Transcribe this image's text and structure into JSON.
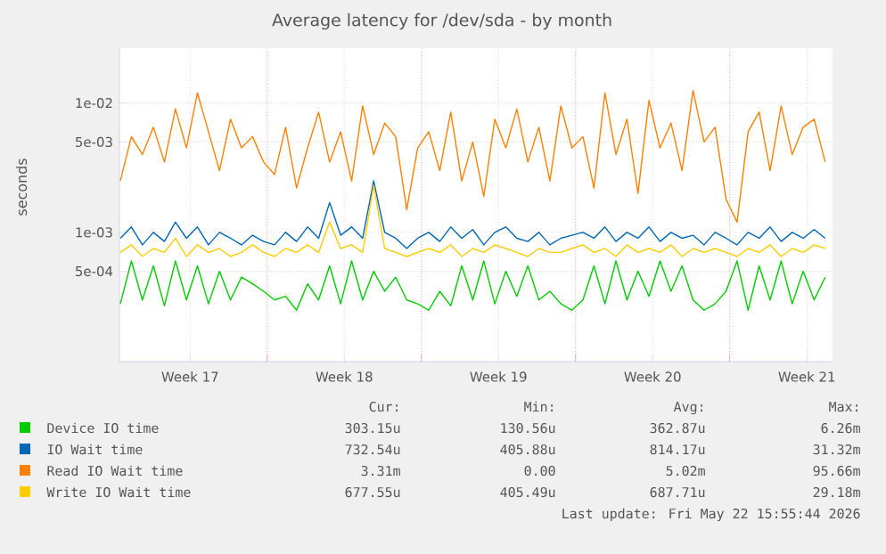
{
  "chart_data": {
    "type": "line",
    "title": "Average latency for /dev/sda - by month",
    "ylabel": "seconds",
    "log": "y",
    "grid": true,
    "legend": "bottom",
    "marker": "none",
    "xlim": [
      "2026-04-20T07:00",
      "2026-05-22T16:00"
    ],
    "xticks": [
      {
        "value": "2026-04-23T12:00",
        "label": "Week 17"
      },
      {
        "value": "2026-04-27T00:00",
        "label": null
      },
      {
        "value": "2026-04-30T12:00",
        "label": "Week 18"
      },
      {
        "value": "2026-05-04T00:00",
        "label": null
      },
      {
        "value": "2026-05-07T12:00",
        "label": "Week 19"
      },
      {
        "value": "2026-05-11T00:00",
        "label": null
      },
      {
        "value": "2026-05-14T12:00",
        "label": "Week 20"
      },
      {
        "value": "2026-05-18T00:00",
        "label": null
      },
      {
        "value": "2026-05-21T12:00",
        "label": "Week 21"
      }
    ],
    "ylim": [
      0.0001,
      0.0266
    ],
    "yticks": [
      {
        "value": 0.0005,
        "label": "5e-04"
      },
      {
        "value": 0.001,
        "label": "1e-03"
      },
      {
        "value": 0.005,
        "label": "5e-03"
      },
      {
        "value": 0.01,
        "label": "1e-02"
      }
    ],
    "x": [
      "2026-04-20T08:00",
      "2026-04-20T20:00",
      "2026-04-21T08:00",
      "2026-04-21T20:00",
      "2026-04-22T08:00",
      "2026-04-22T20:00",
      "2026-04-23T08:00",
      "2026-04-23T20:00",
      "2026-04-24T08:00",
      "2026-04-24T20:00",
      "2026-04-25T08:00",
      "2026-04-25T20:00",
      "2026-04-26T08:00",
      "2026-04-26T20:00",
      "2026-04-27T08:00",
      "2026-04-27T20:00",
      "2026-04-28T08:00",
      "2026-04-28T20:00",
      "2026-04-29T08:00",
      "2026-04-29T20:00",
      "2026-04-30T08:00",
      "2026-04-30T20:00",
      "2026-05-01T08:00",
      "2026-05-01T20:00",
      "2026-05-02T08:00",
      "2026-05-02T20:00",
      "2026-05-03T08:00",
      "2026-05-03T20:00",
      "2026-05-04T08:00",
      "2026-05-04T20:00",
      "2026-05-05T08:00",
      "2026-05-05T20:00",
      "2026-05-06T08:00",
      "2026-05-06T20:00",
      "2026-05-07T08:00",
      "2026-05-07T20:00",
      "2026-05-08T08:00",
      "2026-05-08T20:00",
      "2026-05-09T08:00",
      "2026-05-09T20:00",
      "2026-05-10T08:00",
      "2026-05-10T20:00",
      "2026-05-11T08:00",
      "2026-05-11T20:00",
      "2026-05-12T08:00",
      "2026-05-12T20:00",
      "2026-05-13T08:00",
      "2026-05-13T20:00",
      "2026-05-14T08:00",
      "2026-05-14T20:00",
      "2026-05-15T08:00",
      "2026-05-15T20:00",
      "2026-05-16T08:00",
      "2026-05-16T20:00",
      "2026-05-17T08:00",
      "2026-05-17T20:00",
      "2026-05-18T08:00",
      "2026-05-18T20:00",
      "2026-05-19T08:00",
      "2026-05-19T20:00",
      "2026-05-20T08:00",
      "2026-05-20T20:00",
      "2026-05-21T08:00",
      "2026-05-21T20:00",
      "2026-05-22T08:00"
    ],
    "series": [
      {
        "name": "Device IO time",
        "color": "#00cc00",
        "values": [
          0.00028,
          0.0006,
          0.0003,
          0.00055,
          0.00027,
          0.0006,
          0.0003,
          0.00055,
          0.00028,
          0.0005,
          0.0003,
          0.00045,
          0.0004,
          0.00035,
          0.0003,
          0.00032,
          0.00025,
          0.0004,
          0.0003,
          0.00055,
          0.00028,
          0.0006,
          0.0003,
          0.0005,
          0.00035,
          0.00045,
          0.0003,
          0.00028,
          0.00025,
          0.00035,
          0.00027,
          0.00055,
          0.0003,
          0.0006,
          0.00028,
          0.0005,
          0.00032,
          0.00055,
          0.0003,
          0.00035,
          0.00028,
          0.00025,
          0.0003,
          0.00055,
          0.00028,
          0.0006,
          0.0003,
          0.0005,
          0.00032,
          0.0006,
          0.00035,
          0.00055,
          0.0003,
          0.00025,
          0.00028,
          0.00035,
          0.0006,
          0.00025,
          0.00055,
          0.0003,
          0.0006,
          0.00028,
          0.0005,
          0.0003,
          0.00045
        ]
      },
      {
        "name": "IO Wait time",
        "color": "#0066b3",
        "values": [
          0.0009,
          0.0011,
          0.0008,
          0.001,
          0.00085,
          0.0012,
          0.0009,
          0.0011,
          0.0008,
          0.001,
          0.0009,
          0.0008,
          0.00095,
          0.00085,
          0.0008,
          0.001,
          0.00085,
          0.0011,
          0.0009,
          0.0017,
          0.00095,
          0.0011,
          0.0009,
          0.0025,
          0.001,
          0.0009,
          0.00075,
          0.0009,
          0.001,
          0.00085,
          0.0011,
          0.0009,
          0.00105,
          0.0008,
          0.001,
          0.0011,
          0.0009,
          0.00085,
          0.001,
          0.0008,
          0.0009,
          0.00095,
          0.001,
          0.0009,
          0.0011,
          0.00085,
          0.001,
          0.0009,
          0.0011,
          0.00085,
          0.001,
          0.0009,
          0.00095,
          0.0008,
          0.001,
          0.0009,
          0.0008,
          0.001,
          0.0009,
          0.0011,
          0.00085,
          0.001,
          0.0009,
          0.00105,
          0.0009
        ]
      },
      {
        "name": "Read IO Wait time",
        "color": "#ff8000",
        "values": [
          0.0025,
          0.0055,
          0.004,
          0.0065,
          0.0035,
          0.009,
          0.0045,
          0.012,
          0.006,
          0.003,
          0.0075,
          0.0045,
          0.0055,
          0.0035,
          0.0028,
          0.0065,
          0.0022,
          0.0045,
          0.0085,
          0.0035,
          0.006,
          0.0025,
          0.0095,
          0.004,
          0.007,
          0.0055,
          0.0015,
          0.0045,
          0.006,
          0.003,
          0.0085,
          0.0025,
          0.005,
          0.0019,
          0.0075,
          0.0045,
          0.009,
          0.0035,
          0.0065,
          0.0025,
          0.0095,
          0.0045,
          0.0055,
          0.0022,
          0.012,
          0.004,
          0.0075,
          0.002,
          0.0105,
          0.0045,
          0.007,
          0.003,
          0.0125,
          0.005,
          0.0065,
          0.0018,
          0.0012,
          0.006,
          0.0085,
          0.003,
          0.0095,
          0.004,
          0.0065,
          0.0075,
          0.0035
        ]
      },
      {
        "name": "Write IO Wait time",
        "color": "#ffcc00",
        "values": [
          0.0007,
          0.0008,
          0.00065,
          0.00075,
          0.0007,
          0.0009,
          0.00065,
          0.0008,
          0.0007,
          0.00075,
          0.00065,
          0.0007,
          0.0008,
          0.0007,
          0.00065,
          0.00075,
          0.0007,
          0.0008,
          0.0007,
          0.0012,
          0.00075,
          0.0008,
          0.0007,
          0.0023,
          0.00075,
          0.0007,
          0.00065,
          0.0007,
          0.00075,
          0.0007,
          0.0008,
          0.00065,
          0.00075,
          0.0007,
          0.0008,
          0.00075,
          0.0007,
          0.00065,
          0.00075,
          0.0007,
          0.0007,
          0.00075,
          0.0008,
          0.0007,
          0.00075,
          0.00065,
          0.0008,
          0.0007,
          0.00075,
          0.0007,
          0.0008,
          0.00065,
          0.00075,
          0.0007,
          0.00075,
          0.0007,
          0.00065,
          0.00075,
          0.0007,
          0.0008,
          0.00065,
          0.00075,
          0.0007,
          0.0008,
          0.00075
        ]
      }
    ],
    "annotations": [
      "Cur:",
      "Min:",
      "Avg:",
      "Max:",
      "303.15u",
      "130.56u",
      "362.87u",
      "6.26m",
      "732.54u",
      "405.88u",
      "814.17u",
      "31.32m",
      "3.31m",
      "0.00",
      "5.02m",
      "95.66m",
      "677.55u",
      "405.49u",
      "687.71u",
      "29.18m",
      "Last update: Fri May 22 15:55:44 2026"
    ]
  }
}
